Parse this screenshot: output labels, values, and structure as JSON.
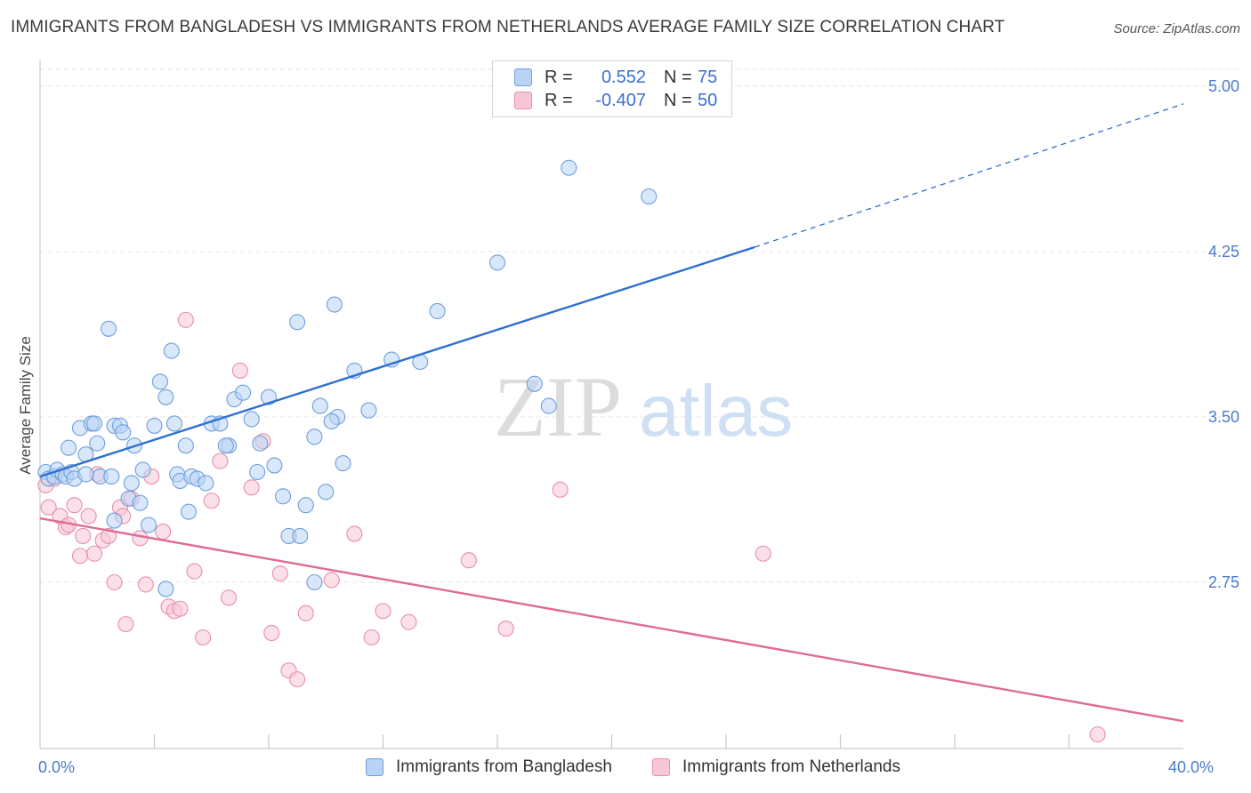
{
  "title": "IMMIGRANTS FROM BANGLADESH VS IMMIGRANTS FROM NETHERLANDS AVERAGE FAMILY SIZE CORRELATION CHART",
  "source": "Source: ZipAtlas.com",
  "watermark": {
    "zip": "ZIP",
    "atlas": "atlas"
  },
  "legend": {
    "rows": [
      {
        "r_label": "R =",
        "r_value": "0.552",
        "n_label": "N =",
        "n_value": "75"
      },
      {
        "r_label": "R =",
        "r_value": "-0.407",
        "n_label": "N =",
        "n_value": "50"
      }
    ]
  },
  "colors": {
    "blue_fill": "#b8d3f5",
    "blue_stroke": "#6f9fdc",
    "blue_line": "#2e6fd0",
    "pink_fill": "#f8c7d6",
    "pink_stroke": "#e88fab",
    "pink_line": "#e06a96",
    "grid": "#e4e4e4",
    "tick_text": "#4a7cc9"
  },
  "chart_data": {
    "type": "scatter",
    "xlabel": "",
    "ylabel": "Average Family Size",
    "xlim": [
      0,
      40
    ],
    "ylim": [
      2.05,
      5.1
    ],
    "x_tick_labels": [
      {
        "value": 0,
        "label": "0.0%"
      },
      {
        "value": 40,
        "label": "40.0%"
      }
    ],
    "x_minor_ticks": [
      4,
      8,
      12,
      16,
      20,
      24,
      28,
      32,
      36
    ],
    "y_ticks": [
      {
        "value": 2.75,
        "label": "2.75"
      },
      {
        "value": 3.5,
        "label": "3.50"
      },
      {
        "value": 4.25,
        "label": "4.25"
      },
      {
        "value": 5.0,
        "label": "5.00"
      }
    ],
    "grid": true,
    "legend_position": "bottom",
    "series": [
      {
        "name": "Immigrants from Bangladesh",
        "color": "blue",
        "trend": {
          "x0": 0,
          "y0": 3.23,
          "x1": 25,
          "y1": 4.27,
          "dash_to_x": 40,
          "dash_to_y": 4.92
        },
        "points": [
          [
            0.2,
            3.25
          ],
          [
            0.3,
            3.22
          ],
          [
            0.5,
            3.23
          ],
          [
            0.6,
            3.26
          ],
          [
            0.8,
            3.24
          ],
          [
            0.9,
            3.23
          ],
          [
            1.1,
            3.25
          ],
          [
            1.0,
            3.36
          ],
          [
            1.2,
            3.22
          ],
          [
            1.4,
            3.45
          ],
          [
            1.6,
            3.33
          ],
          [
            1.8,
            3.47
          ],
          [
            1.9,
            3.47
          ],
          [
            2.0,
            3.38
          ],
          [
            2.1,
            3.23
          ],
          [
            1.6,
            3.24
          ],
          [
            2.6,
            3.46
          ],
          [
            2.8,
            3.46
          ],
          [
            2.9,
            3.43
          ],
          [
            3.1,
            3.13
          ],
          [
            3.2,
            3.2
          ],
          [
            3.3,
            3.37
          ],
          [
            2.5,
            3.23
          ],
          [
            2.6,
            3.03
          ],
          [
            3.5,
            3.11
          ],
          [
            3.6,
            3.26
          ],
          [
            3.8,
            3.01
          ],
          [
            4.0,
            3.46
          ],
          [
            4.2,
            3.66
          ],
          [
            4.4,
            3.59
          ],
          [
            4.6,
            3.8
          ],
          [
            4.7,
            3.47
          ],
          [
            4.8,
            3.24
          ],
          [
            4.9,
            3.21
          ],
          [
            5.1,
            3.37
          ],
          [
            5.2,
            3.07
          ],
          [
            5.3,
            3.23
          ],
          [
            5.5,
            3.22
          ],
          [
            5.8,
            3.2
          ],
          [
            6.0,
            3.47
          ],
          [
            6.3,
            3.47
          ],
          [
            6.6,
            3.37
          ],
          [
            6.8,
            3.58
          ],
          [
            7.1,
            3.61
          ],
          [
            7.4,
            3.49
          ],
          [
            7.7,
            3.38
          ],
          [
            8.0,
            3.59
          ],
          [
            8.2,
            3.28
          ],
          [
            8.5,
            3.14
          ],
          [
            6.5,
            3.37
          ],
          [
            9.0,
            3.93
          ],
          [
            9.3,
            3.1
          ],
          [
            9.6,
            3.41
          ],
          [
            10.0,
            3.16
          ],
          [
            10.4,
            3.5
          ],
          [
            10.6,
            3.29
          ],
          [
            11.0,
            3.71
          ],
          [
            11.5,
            3.53
          ],
          [
            12.3,
            3.76
          ],
          [
            13.3,
            3.75
          ],
          [
            13.9,
            3.98
          ],
          [
            16.0,
            4.2
          ],
          [
            17.3,
            3.65
          ],
          [
            17.8,
            3.55
          ],
          [
            18.5,
            4.63
          ],
          [
            21.3,
            4.5
          ],
          [
            10.3,
            4.01
          ],
          [
            2.4,
            3.9
          ],
          [
            9.8,
            3.55
          ],
          [
            8.7,
            2.96
          ],
          [
            9.1,
            2.96
          ],
          [
            4.4,
            2.72
          ],
          [
            10.2,
            3.48
          ],
          [
            7.6,
            3.25
          ],
          [
            9.6,
            2.75
          ]
        ]
      },
      {
        "name": "Immigrants from Netherlands",
        "color": "pink",
        "trend": {
          "x0": 0,
          "y0": 3.04,
          "x1": 40,
          "y1": 2.12
        },
        "points": [
          [
            0.2,
            3.19
          ],
          [
            0.3,
            3.09
          ],
          [
            0.5,
            3.22
          ],
          [
            0.7,
            3.05
          ],
          [
            0.9,
            3.0
          ],
          [
            1.0,
            3.01
          ],
          [
            1.2,
            3.1
          ],
          [
            1.4,
            2.87
          ],
          [
            1.5,
            2.96
          ],
          [
            1.7,
            3.05
          ],
          [
            1.9,
            2.88
          ],
          [
            2.0,
            3.24
          ],
          [
            2.2,
            2.94
          ],
          [
            2.4,
            2.96
          ],
          [
            2.6,
            2.75
          ],
          [
            2.8,
            3.09
          ],
          [
            3.0,
            2.56
          ],
          [
            3.2,
            3.13
          ],
          [
            3.5,
            2.95
          ],
          [
            3.7,
            2.74
          ],
          [
            3.9,
            3.23
          ],
          [
            2.9,
            3.05
          ],
          [
            4.3,
            2.98
          ],
          [
            4.5,
            2.64
          ],
          [
            4.7,
            2.62
          ],
          [
            4.9,
            2.63
          ],
          [
            5.1,
            3.94
          ],
          [
            5.4,
            2.8
          ],
          [
            5.7,
            2.5
          ],
          [
            6.0,
            3.12
          ],
          [
            6.3,
            3.3
          ],
          [
            6.6,
            2.68
          ],
          [
            7.0,
            3.71
          ],
          [
            7.4,
            3.18
          ],
          [
            7.8,
            3.39
          ],
          [
            8.1,
            2.52
          ],
          [
            8.4,
            2.79
          ],
          [
            8.7,
            2.35
          ],
          [
            9.0,
            2.31
          ],
          [
            9.3,
            2.61
          ],
          [
            10.2,
            2.76
          ],
          [
            11.0,
            2.97
          ],
          [
            11.6,
            2.5
          ],
          [
            12.0,
            2.62
          ],
          [
            12.9,
            2.57
          ],
          [
            15.0,
            2.85
          ],
          [
            16.3,
            2.54
          ],
          [
            18.2,
            3.17
          ],
          [
            25.3,
            2.88
          ],
          [
            37.0,
            2.06
          ]
        ]
      }
    ]
  }
}
